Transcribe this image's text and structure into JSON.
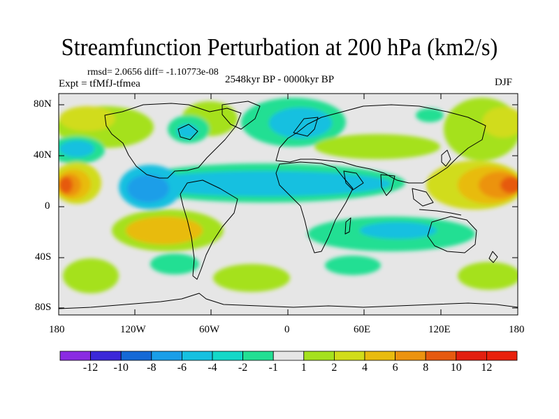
{
  "title": "Streamfunction Perturbation at 200 hPa (km2/s)",
  "stats": "rmsd= 2.0656 diff= -1.10773e-08",
  "experiment": "Expt = tfMfJ-tfmea",
  "period": "2548kyr BP - 0000kyr BP",
  "season": "DJF",
  "axes": {
    "lat_labels": [
      "80N",
      "40N",
      "0",
      "40S",
      "80S"
    ],
    "lon_labels": [
      "180",
      "120W",
      "60W",
      "0",
      "60E",
      "120E",
      "180"
    ]
  },
  "colorbar": {
    "labels": [
      "-12",
      "-10",
      "-8",
      "-6",
      "-4",
      "-2",
      "-1",
      "1",
      "2",
      "4",
      "6",
      "8",
      "10",
      "12"
    ],
    "colors": [
      "#8a2be2",
      "#3b28d8",
      "#1569d6",
      "#1a9ee8",
      "#16c0e0",
      "#14d8c8",
      "#23df93",
      "#e6e6e6",
      "#a5e11e",
      "#d1dc1a",
      "#e8bb0f",
      "#ec9310",
      "#e65a10",
      "#e21f10",
      "#e8200c"
    ]
  },
  "colors": {
    "neutral": "#e6e6e6",
    "coast": "#000000"
  }
}
